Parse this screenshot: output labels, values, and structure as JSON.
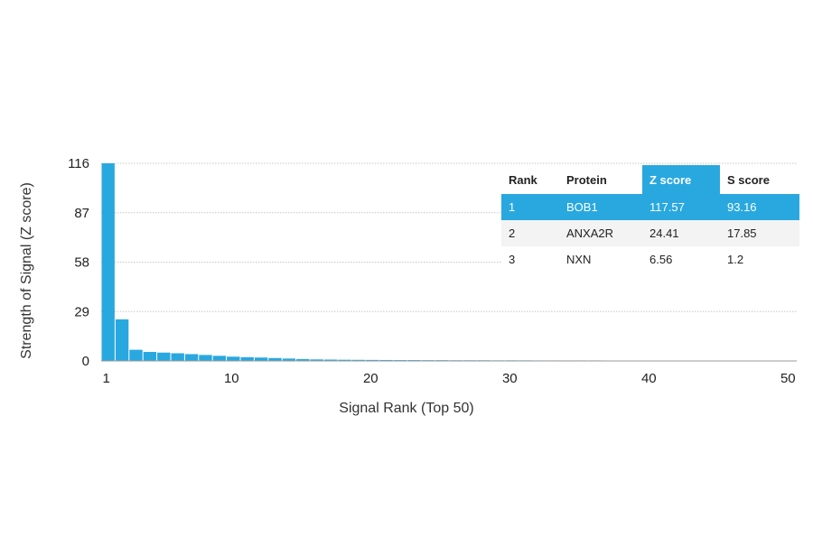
{
  "chart_data": {
    "type": "bar",
    "xlabel": "Signal Rank (Top 50)",
    "ylabel": "Strength of Signal (Z score)",
    "x_ticks": [
      1,
      10,
      20,
      30,
      40,
      50
    ],
    "y_ticks": [
      0,
      29,
      58,
      87,
      116
    ],
    "ylim": [
      0,
      116
    ],
    "xlim": [
      1,
      50
    ],
    "grid": true,
    "bar_color": "#29a8e0",
    "x": [
      1,
      2,
      3,
      4,
      5,
      6,
      7,
      8,
      9,
      10,
      11,
      12,
      13,
      14,
      15,
      16,
      17,
      18,
      19,
      20,
      21,
      22,
      23,
      24,
      25,
      26,
      27,
      28,
      29,
      30,
      31,
      32,
      33,
      34,
      35,
      36,
      37,
      38,
      39,
      40,
      41,
      42,
      43,
      44,
      45,
      46,
      47,
      48,
      49,
      50
    ],
    "values": [
      117.57,
      24.41,
      6.56,
      5.3,
      4.9,
      4.5,
      4.0,
      3.5,
      3.0,
      2.5,
      2.2,
      2.0,
      1.7,
      1.4,
      1.1,
      0.9,
      0.8,
      0.7,
      0.65,
      0.6,
      0.55,
      0.5,
      0.5,
      0.45,
      0.45,
      0.4,
      0.4,
      0.4,
      0.35,
      0.35,
      0.35,
      0.3,
      0.3,
      0.3,
      0.3,
      0.3,
      0.25,
      0.25,
      0.25,
      0.25,
      0.25,
      0.2,
      0.2,
      0.2,
      0.2,
      0.2,
      0.2,
      0.2,
      0.2,
      0.2
    ]
  },
  "table": {
    "headers": [
      "Rank",
      "Protein",
      "Z score",
      "S score"
    ],
    "highlight_color": "#29a8e0",
    "rows": [
      {
        "rank": "1",
        "protein": "BOB1",
        "z": "117.57",
        "s": "93.16"
      },
      {
        "rank": "2",
        "protein": "ANXA2R",
        "z": "24.41",
        "s": "17.85"
      },
      {
        "rank": "3",
        "protein": "NXN",
        "z": "6.56",
        "s": "1.2"
      }
    ]
  }
}
